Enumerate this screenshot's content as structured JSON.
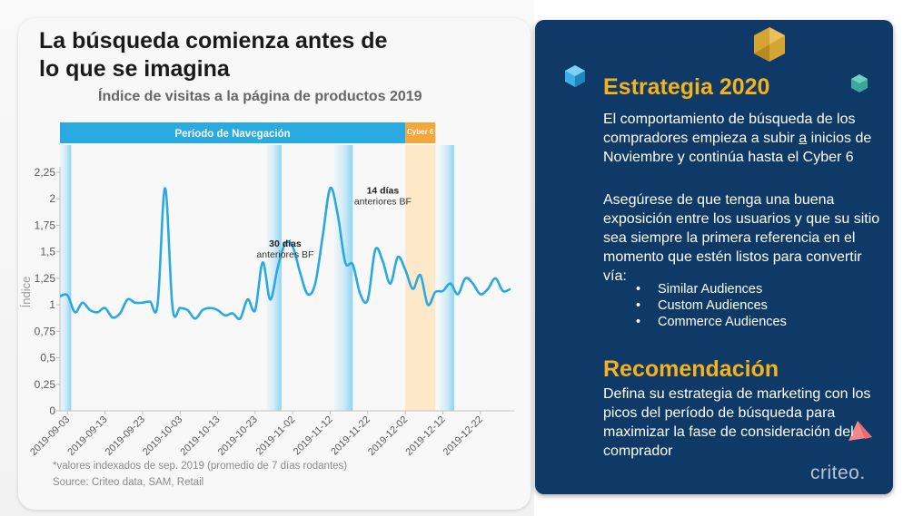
{
  "slide": {
    "title_line1": "La búsqueda comienza antes de",
    "title_line2": "lo que se imagina",
    "subtitle": "Índice de visitas a la página de productos 2019",
    "footnote": "*valores indexados de sep. 2019 (promedio de 7 días rodantes)",
    "source": "Source: Criteo data, SAM, Retail"
  },
  "panel": {
    "heading_strategy": "Estrategia 2020",
    "para1_a": " El comportamiento de búsqueda de los compradores empieza a subir ",
    "para1_u": "a",
    "para1_b": " inicios de Noviembre y continúa hasta el Cyber 6",
    "para2": "Asegúrese de que tenga una buena exposición entre los usuarios y que su sitio sea siempre la primera referencia en el momento que estén listos para convertir vía:",
    "bullets": [
      "Similar Audiences",
      "Custom Audiences",
      "Commerce Audiences"
    ],
    "heading_reco": "Recomendación",
    "para3": "Defina su estrategia de marketing con los picos del período de búsqueda para maximizar la fase de consideración del comprador",
    "logo": "criteo",
    "colors": {
      "panel": "#0f3a68",
      "heading": "#f5b21a",
      "text": "#ffffff"
    }
  },
  "chart_data": {
    "type": "line",
    "ylabel": "Índice",
    "yticks": [
      "0",
      "0,25",
      "0,5",
      "0,75",
      "1",
      "1,25",
      "1,5",
      "1,75",
      "2",
      "2,25"
    ],
    "ylim": [
      0,
      2.25
    ],
    "xlim": [
      "2019-09-01",
      "2019-12-31"
    ],
    "xticks": [
      "2019-09-03",
      "2019-09-13",
      "2019-09-23",
      "2019-10-03",
      "2019-10-13",
      "2019-10-23",
      "2019-11-02",
      "2019-11-12",
      "2019-11-22",
      "2019-12-02",
      "2019-12-12",
      "2019-12-22"
    ],
    "line_color": "#29a9e1",
    "series": [
      {
        "x": [
          "2019-09-01",
          "2019-09-03",
          "2019-09-05",
          "2019-09-07",
          "2019-09-09",
          "2019-09-11",
          "2019-09-13",
          "2019-09-15",
          "2019-09-17",
          "2019-09-19",
          "2019-09-21",
          "2019-09-23",
          "2019-09-25",
          "2019-09-27",
          "2019-09-29",
          "2019-10-01",
          "2019-10-03",
          "2019-10-05",
          "2019-10-07",
          "2019-10-09",
          "2019-10-11",
          "2019-10-13",
          "2019-10-15",
          "2019-10-17",
          "2019-10-19",
          "2019-10-21",
          "2019-10-23",
          "2019-10-25",
          "2019-10-27",
          "2019-10-29",
          "2019-10-31",
          "2019-11-02",
          "2019-11-04",
          "2019-11-06",
          "2019-11-08",
          "2019-11-10",
          "2019-11-12",
          "2019-11-14",
          "2019-11-16",
          "2019-11-18",
          "2019-11-20",
          "2019-11-22",
          "2019-11-24",
          "2019-11-26",
          "2019-11-28",
          "2019-11-30",
          "2019-12-02",
          "2019-12-04",
          "2019-12-06",
          "2019-12-08",
          "2019-12-10",
          "2019-12-12",
          "2019-12-14",
          "2019-12-16",
          "2019-12-18",
          "2019-12-20",
          "2019-12-22",
          "2019-12-24",
          "2019-12-26",
          "2019-12-28",
          "2019-12-30"
        ],
        "values": [
          1.08,
          1.09,
          0.93,
          1.02,
          0.95,
          0.93,
          0.97,
          0.88,
          0.92,
          1.05,
          1.02,
          1.02,
          1.03,
          1.0,
          2.1,
          0.97,
          0.97,
          0.95,
          0.87,
          0.95,
          0.97,
          0.95,
          0.9,
          0.92,
          0.87,
          1.05,
          0.95,
          1.4,
          1.05,
          1.35,
          1.58,
          1.55,
          1.3,
          1.1,
          1.2,
          1.65,
          2.1,
          1.85,
          1.4,
          1.38,
          1.1,
          1.05,
          1.52,
          1.41,
          1.2,
          1.45,
          1.33,
          1.15,
          1.28,
          1.0,
          1.12,
          1.13,
          1.2,
          1.1,
          1.25,
          1.2,
          1.1,
          1.15,
          1.25,
          1.13,
          1.15
        ]
      }
    ],
    "bands": {
      "navigation": {
        "label": "Período de Navegación",
        "from": "2019-09-01",
        "to": "2019-12-02",
        "color": "#29abe2"
      },
      "cyber": {
        "label": "Cyber 6",
        "from": "2019-12-02",
        "to": "2019-12-10",
        "color": "#f3a63a"
      }
    },
    "annotations": [
      {
        "bold": "30 días",
        "normal": "anteriores BF",
        "x": "2019-10-31",
        "y": 1.55
      },
      {
        "bold": "14 días",
        "normal": "anteriores BF",
        "x": "2019-11-26",
        "y": 2.05
      }
    ],
    "highlight_periods": [
      {
        "from": "2019-09-01",
        "to": "2019-09-04"
      },
      {
        "from": "2019-10-26",
        "to": "2019-10-30"
      },
      {
        "from": "2019-11-13",
        "to": "2019-11-18"
      },
      {
        "from": "2019-12-11",
        "to": "2019-12-15"
      }
    ],
    "highlight_color": "#d2ecf8",
    "cyber_fill": "#fde9c8"
  }
}
